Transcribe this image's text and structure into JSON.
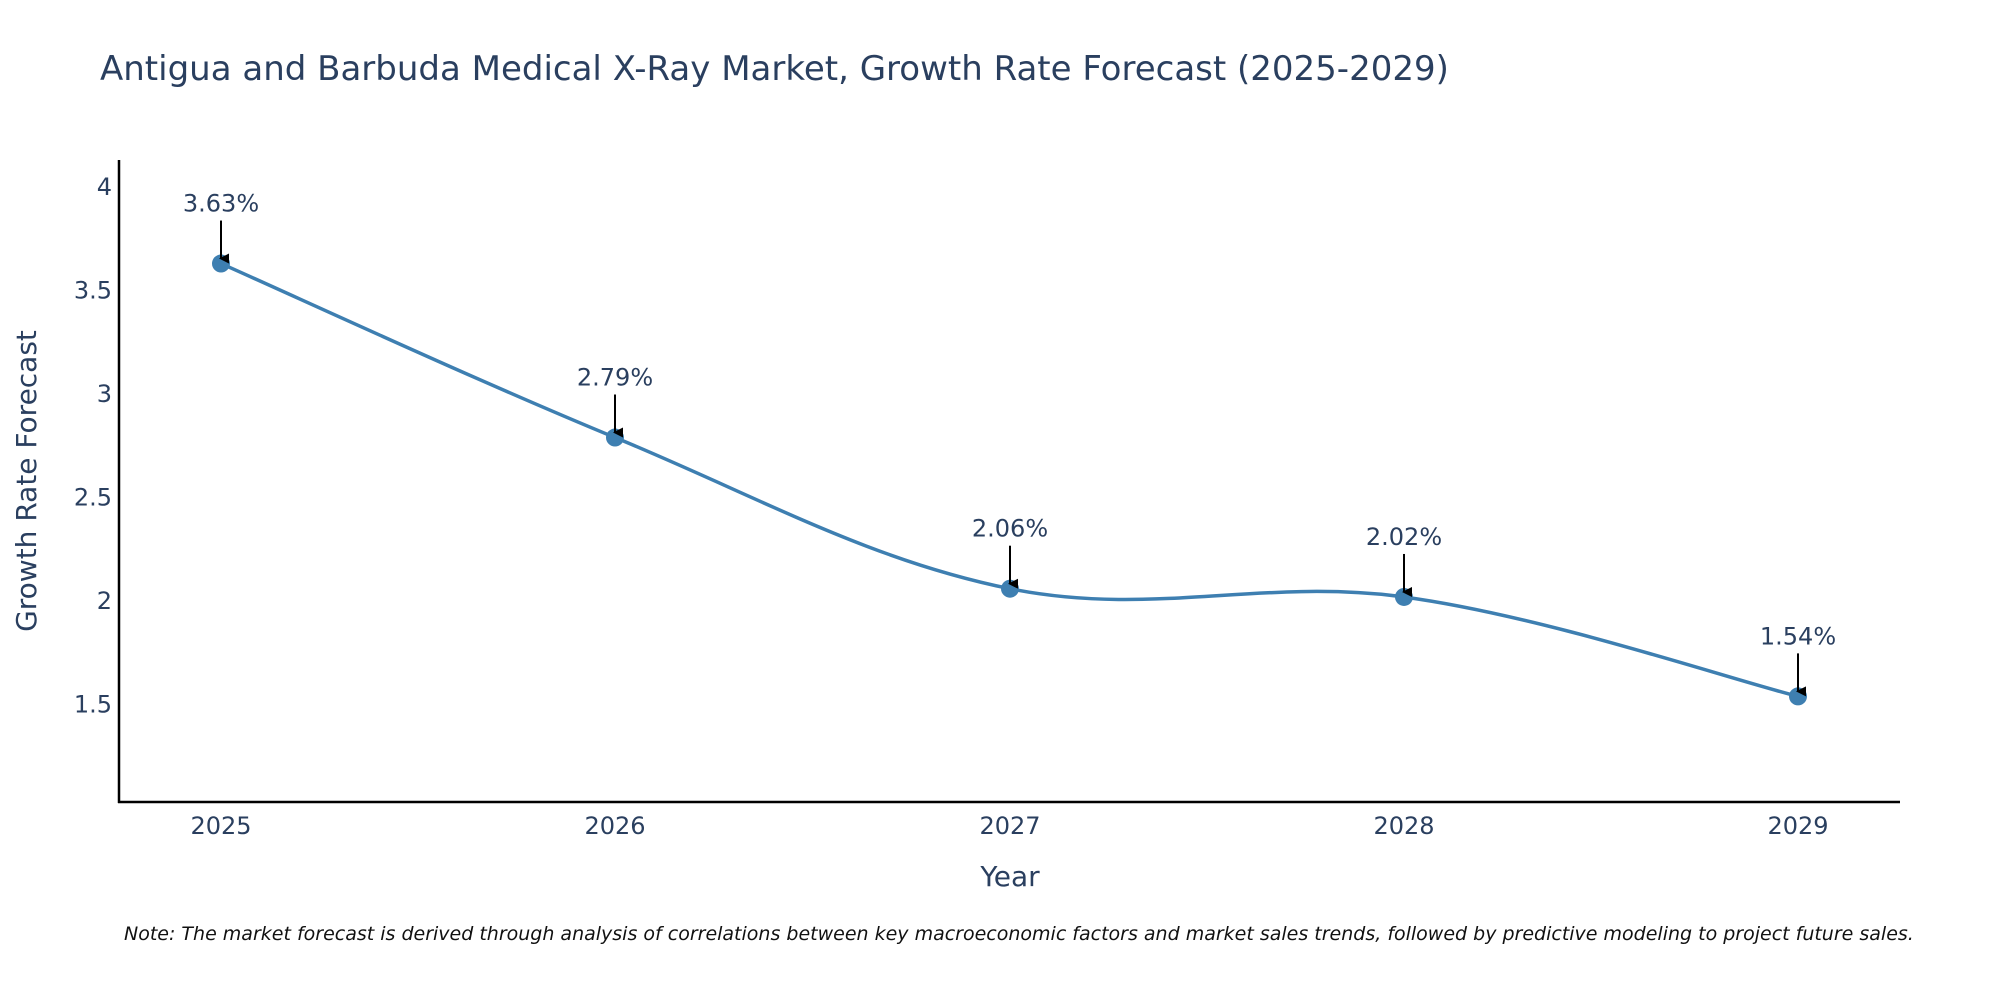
{
  "chart_data": {
    "type": "line",
    "title": "Antigua and Barbuda Medical X-Ray Market, Growth Rate Forecast (2025-2029)",
    "xlabel": "Year",
    "ylabel": "Growth Rate Forecast",
    "categories": [
      "2025",
      "2026",
      "2027",
      "2028",
      "2029"
    ],
    "series": [
      {
        "name": "Growth Rate Forecast",
        "values": [
          3.63,
          2.79,
          2.06,
          2.02,
          1.54
        ],
        "labels": [
          "3.63%",
          "2.79%",
          "2.06%",
          "2.02%",
          "1.54%"
        ],
        "color": "#3e7fb1"
      }
    ],
    "ylim": [
      1.03,
      4.13
    ],
    "yticks": [
      1.5,
      2,
      2.5,
      3,
      3.5,
      4
    ],
    "ytick_labels": [
      "1.5",
      "2",
      "2.5",
      "3",
      "3.5",
      "4"
    ],
    "grid": false,
    "legend": "none",
    "note": "Note: The market forecast is derived through analysis of correlations between key macroeconomic factors and market sales trends, followed by predictive modeling to project future sales."
  },
  "colors": {
    "line": "#3e7fb1",
    "marker": "#3e7fb1",
    "axis": "#000000",
    "text": "#2a3f5f",
    "arrow": "#000000"
  }
}
